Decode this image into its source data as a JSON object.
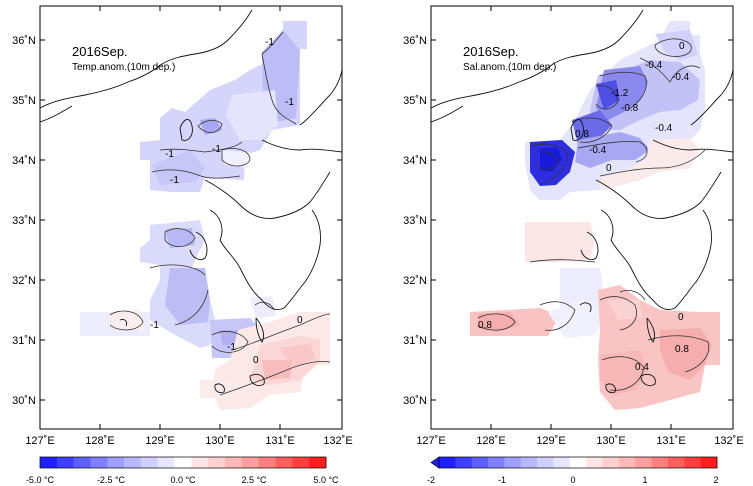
{
  "panels": [
    {
      "title": "2016Sep.",
      "subtitle": "Temp.anom.(10m dep.)",
      "contour_labels": [
        "-1",
        "-1",
        "-1",
        "-1",
        "-1",
        "-1",
        "0",
        "0",
        "-1"
      ],
      "colorbar": {
        "labels": [
          "-5.0 °C",
          "-2.5 °C",
          "0.0 °C",
          "2.5 °C",
          "5.0 °C"
        ],
        "colors": [
          "#1f1fff",
          "#3f3fff",
          "#5f5fff",
          "#7f7fff",
          "#9f9fff",
          "#b8b8ff",
          "#d0d0ff",
          "#e6e6ff",
          "#ffffff",
          "#ffe6e6",
          "#ffd0d0",
          "#ffb8b8",
          "#ff9f9f",
          "#ff7f7f",
          "#ff5f5f",
          "#ff3f3f",
          "#ff1f1f"
        ]
      }
    },
    {
      "title": "2016Sep.",
      "subtitle": "Sal.anom.(10m dep.)",
      "contour_labels": [
        "0",
        "-0.4",
        "-0.4",
        "-1.2",
        "-0.8",
        "0.8",
        "-0.4",
        "0",
        "-0.4",
        "0.8",
        "0",
        "0.8",
        "0.4"
      ],
      "colorbar": {
        "labels": [
          "-2",
          "-1",
          "0",
          "1",
          "2"
        ],
        "colors": [
          "#1f1fff",
          "#3f3fff",
          "#5f5fff",
          "#7f7fff",
          "#9f9fff",
          "#b8b8ff",
          "#d0d0ff",
          "#e6e6ff",
          "#ffffff",
          "#ffe6e6",
          "#ffd0d0",
          "#ffb8b8",
          "#ff9f9f",
          "#ff7f7f",
          "#ff5f5f",
          "#ff3f3f",
          "#ff1f1f"
        ]
      }
    }
  ],
  "axes": {
    "x_ticks": [
      "127˚E",
      "128˚E",
      "129˚E",
      "130˚E",
      "131˚E",
      "132˚E"
    ],
    "y_ticks": [
      "36˚N",
      "35˚N",
      "34˚N",
      "33˚N",
      "32˚N",
      "31˚N",
      "30˚N"
    ]
  }
}
